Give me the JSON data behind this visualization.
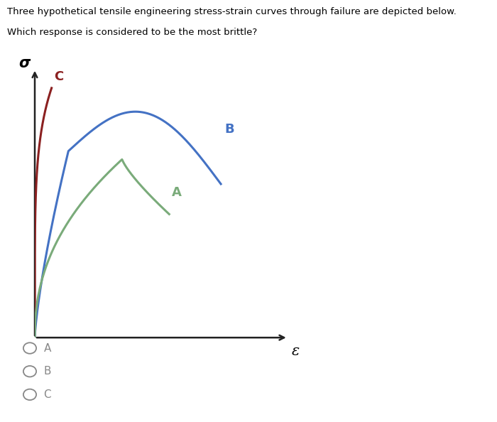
{
  "title_line1": "Three hypothetical tensile engineering stress-strain curves through failure are depicted below.",
  "title_line2": "Which response is considered to be the most brittle?",
  "xlabel": "ε",
  "ylabel": "σ",
  "curve_C_color": "#8B2020",
  "curve_B_color": "#4472C4",
  "curve_A_color": "#7AAB7A",
  "background_color": "#ffffff",
  "options": [
    "A",
    "B",
    "C"
  ],
  "option_color": "#888888",
  "axis_color": "#222222"
}
